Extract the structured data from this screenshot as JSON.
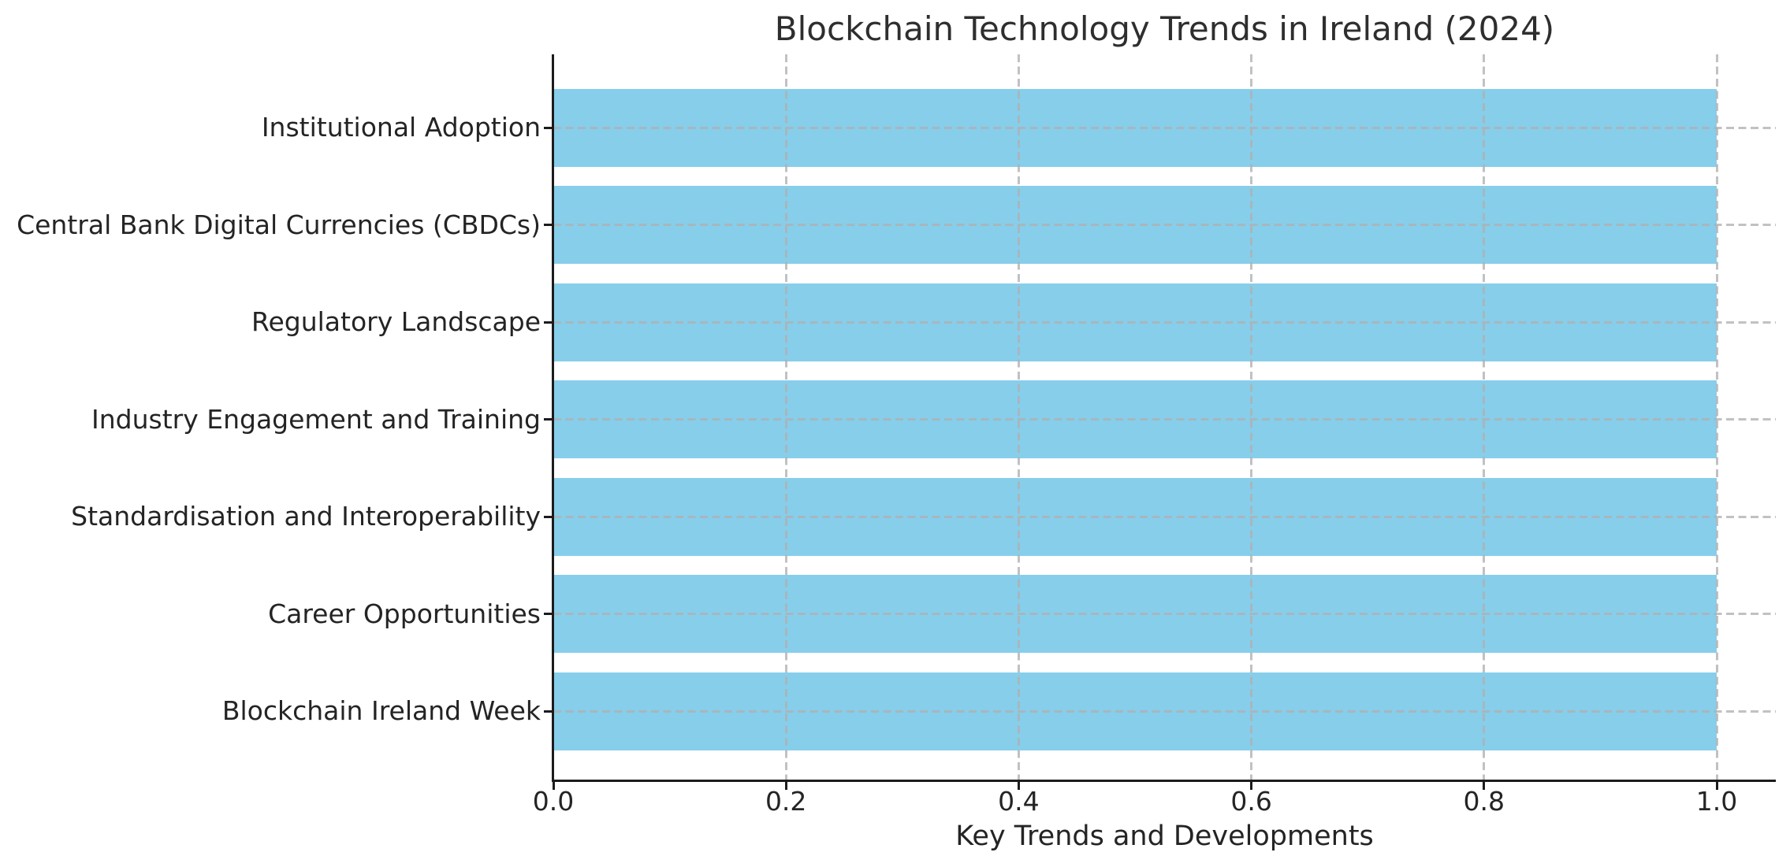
{
  "chart_data": {
    "type": "bar",
    "orientation": "horizontal",
    "title": "Blockchain Technology Trends in Ireland (2024)",
    "xlabel": "Key Trends and Developments",
    "ylabel": "",
    "categories": [
      "Institutional Adoption",
      "Central Bank Digital Currencies (CBDCs)",
      "Regulatory Landscape",
      "Industry Engagement and Training",
      "Standardisation and Interoperability",
      "Career Opportunities",
      "Blockchain Ireland Week"
    ],
    "values": [
      1.0,
      1.0,
      1.0,
      1.0,
      1.0,
      1.0,
      1.0
    ],
    "xlim": [
      0.0,
      1.05
    ],
    "xticks": [
      0.0,
      0.2,
      0.4,
      0.6,
      0.8,
      1.0
    ],
    "xtick_labels": [
      "0.0",
      "0.2",
      "0.4",
      "0.6",
      "0.8",
      "1.0"
    ],
    "bar_height_frac": 0.8,
    "grid": "dashed, both axes, drawn over bars",
    "legend": "none",
    "colors": {
      "bar": "#87CEEB",
      "grid": "#b0b0b0",
      "spine": "#1c1c1c",
      "text": "#242424"
    }
  }
}
